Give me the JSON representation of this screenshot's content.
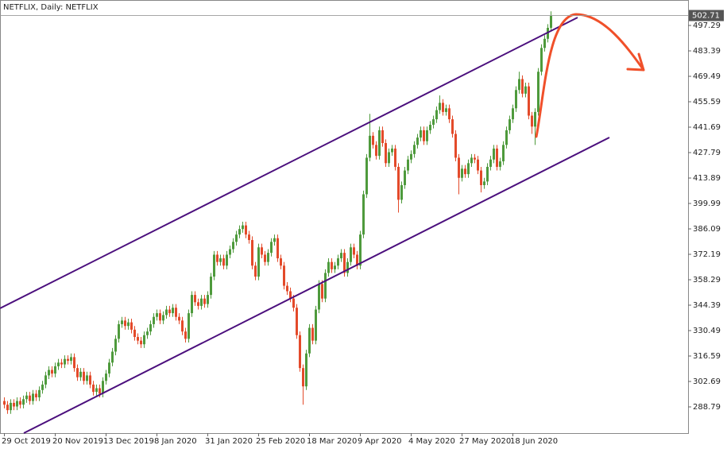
{
  "chart_data": {
    "type": "candlestick",
    "title": "NETFLIX, Daily:  NETFLIX",
    "up_color": "#4e9a3c",
    "down_color": "#e34a2a",
    "last_price": 502.71,
    "ylim": [
      274.46,
      511.2
    ],
    "yticks": [
      288.79,
      302.69,
      316.59,
      330.49,
      344.39,
      358.29,
      372.19,
      386.09,
      399.99,
      413.89,
      427.79,
      441.69,
      455.59,
      469.49,
      483.39,
      497.29
    ],
    "categories": [
      "29 Oct 2019",
      null,
      null,
      null,
      null,
      null,
      null,
      null,
      null,
      null,
      null,
      null,
      null,
      null,
      null,
      null,
      "20 Nov 2019",
      null,
      null,
      null,
      null,
      null,
      null,
      null,
      null,
      null,
      null,
      null,
      null,
      null,
      null,
      null,
      "13 Dec 2019",
      null,
      null,
      null,
      null,
      null,
      null,
      null,
      null,
      null,
      null,
      null,
      null,
      null,
      null,
      null,
      "8 Jan 2020",
      null,
      null,
      null,
      null,
      null,
      null,
      null,
      null,
      null,
      null,
      null,
      null,
      null,
      null,
      null,
      "31 Jan 2020",
      null,
      null,
      null,
      null,
      null,
      null,
      null,
      null,
      null,
      null,
      null,
      null,
      null,
      null,
      null,
      "25 Feb 2020",
      null,
      null,
      null,
      null,
      null,
      null,
      null,
      null,
      null,
      null,
      null,
      null,
      null,
      null,
      null,
      "18 Mar 2020",
      null,
      null,
      null,
      null,
      null,
      null,
      null,
      null,
      null,
      null,
      null,
      null,
      null,
      null,
      null,
      "9 Apr 2020",
      null,
      null,
      null,
      null,
      null,
      null,
      null,
      null,
      null,
      null,
      null,
      null,
      null,
      null,
      null,
      "4 May 2020",
      null,
      null,
      null,
      null,
      null,
      null,
      null,
      null,
      null,
      null,
      null,
      null,
      null,
      null,
      null,
      "27 May 2020",
      null,
      null,
      null,
      null,
      null,
      null,
      null,
      null,
      null,
      null,
      null,
      null,
      null,
      null,
      null,
      "18 Jun 2020",
      null,
      null,
      null,
      null,
      null,
      null,
      null,
      null,
      null,
      null,
      null,
      null
    ],
    "open": [
      292,
      290,
      287,
      291,
      289,
      292,
      290,
      293,
      295,
      292,
      296,
      294,
      298,
      301,
      306,
      309,
      307,
      311,
      313,
      312,
      315,
      314,
      316,
      310,
      305,
      308,
      303,
      306,
      301,
      297,
      299,
      296,
      303,
      307,
      313,
      319,
      326,
      334,
      336,
      333,
      335,
      331,
      327,
      325,
      323,
      328,
      330,
      334,
      338,
      340,
      336,
      339,
      342,
      340,
      343,
      338,
      336,
      330,
      326,
      340,
      350,
      346,
      344,
      348,
      345,
      350,
      360,
      372,
      368,
      370,
      366,
      372,
      375,
      379,
      383,
      386,
      388,
      383,
      380,
      366,
      360,
      376,
      372,
      368,
      373,
      379,
      381,
      370,
      366,
      355,
      352,
      348,
      343,
      328,
      310,
      300,
      318,
      332,
      325,
      342,
      356,
      348,
      362,
      368,
      364,
      366,
      370,
      373,
      362,
      368,
      376,
      372,
      366,
      383,
      405,
      425,
      437,
      432,
      426,
      440,
      433,
      422,
      428,
      430,
      420,
      402,
      410,
      418,
      424,
      427,
      432,
      436,
      440,
      434,
      440,
      443,
      446,
      451,
      455,
      450,
      452,
      446,
      438,
      425,
      414,
      419,
      416,
      422,
      425,
      424,
      418,
      410,
      412,
      420,
      424,
      430,
      420,
      423,
      432,
      440,
      446,
      452,
      462,
      468,
      460,
      464,
      448,
      442,
      450,
      472,
      485,
      490,
      496
    ],
    "high": [
      294,
      292,
      293,
      293,
      294,
      294,
      295,
      297,
      297,
      298,
      298,
      300,
      303,
      308,
      311,
      311,
      313,
      315,
      315,
      317,
      317,
      318,
      318,
      312,
      310,
      310,
      308,
      308,
      303,
      301,
      301,
      305,
      309,
      315,
      321,
      328,
      336,
      338,
      338,
      337,
      337,
      333,
      329,
      327,
      330,
      332,
      336,
      340,
      342,
      342,
      341,
      344,
      344,
      345,
      345,
      340,
      338,
      332,
      342,
      352,
      352,
      348,
      350,
      350,
      352,
      362,
      374,
      374,
      372,
      372,
      374,
      377,
      381,
      385,
      388,
      390,
      390,
      385,
      382,
      368,
      378,
      378,
      374,
      375,
      381,
      383,
      383,
      372,
      368,
      357,
      354,
      350,
      345,
      330,
      312,
      320,
      334,
      334,
      344,
      358,
      358,
      364,
      370,
      370,
      368,
      372,
      375,
      375,
      370,
      378,
      378,
      374,
      385,
      407,
      427,
      449,
      439,
      434,
      442,
      442,
      435,
      430,
      432,
      432,
      422,
      412,
      420,
      426,
      429,
      434,
      438,
      442,
      442,
      442,
      445,
      448,
      453,
      459,
      457,
      454,
      454,
      448,
      440,
      427,
      421,
      421,
      424,
      427,
      427,
      426,
      420,
      414,
      422,
      426,
      432,
      432,
      425,
      434,
      442,
      448,
      454,
      464,
      472,
      470,
      466,
      466,
      450,
      452,
      474,
      487,
      492,
      498,
      505
    ],
    "low": [
      288,
      285,
      285,
      287,
      287,
      288,
      288,
      291,
      290,
      290,
      292,
      292,
      296,
      299,
      304,
      305,
      305,
      309,
      310,
      310,
      312,
      312,
      308,
      303,
      303,
      301,
      301,
      299,
      295,
      295,
      294,
      294,
      301,
      305,
      311,
      317,
      324,
      332,
      331,
      331,
      329,
      325,
      323,
      321,
      321,
      326,
      328,
      332,
      336,
      334,
      334,
      337,
      338,
      338,
      336,
      334,
      328,
      324,
      324,
      338,
      344,
      342,
      342,
      343,
      343,
      348,
      358,
      366,
      366,
      364,
      364,
      370,
      373,
      377,
      381,
      384,
      381,
      378,
      364,
      358,
      358,
      370,
      366,
      366,
      371,
      377,
      368,
      364,
      353,
      350,
      346,
      341,
      326,
      308,
      290,
      298,
      316,
      323,
      323,
      340,
      346,
      346,
      360,
      362,
      362,
      364,
      368,
      360,
      360,
      366,
      370,
      364,
      364,
      381,
      403,
      423,
      430,
      424,
      424,
      431,
      420,
      420,
      426,
      418,
      395,
      400,
      408,
      416,
      422,
      425,
      430,
      434,
      432,
      432,
      438,
      441,
      444,
      449,
      448,
      448,
      444,
      436,
      423,
      405,
      412,
      414,
      414,
      420,
      422,
      416,
      406,
      408,
      410,
      418,
      422,
      418,
      418,
      421,
      430,
      438,
      444,
      450,
      460,
      458,
      458,
      446,
      438,
      432,
      448,
      470,
      483,
      488,
      494
    ],
    "close": [
      290,
      287,
      291,
      289,
      292,
      290,
      293,
      295,
      292,
      296,
      294,
      298,
      301,
      306,
      309,
      307,
      311,
      313,
      312,
      315,
      314,
      316,
      310,
      305,
      308,
      303,
      306,
      301,
      297,
      299,
      296,
      303,
      307,
      313,
      319,
      326,
      334,
      336,
      333,
      335,
      331,
      327,
      325,
      323,
      328,
      330,
      334,
      338,
      340,
      336,
      339,
      342,
      340,
      343,
      338,
      336,
      330,
      326,
      340,
      350,
      346,
      344,
      348,
      345,
      350,
      360,
      372,
      368,
      370,
      366,
      372,
      375,
      379,
      383,
      386,
      388,
      383,
      380,
      366,
      360,
      376,
      372,
      368,
      373,
      379,
      381,
      370,
      366,
      355,
      352,
      348,
      343,
      328,
      310,
      300,
      318,
      332,
      325,
      342,
      356,
      348,
      362,
      368,
      364,
      366,
      370,
      373,
      362,
      368,
      376,
      372,
      366,
      383,
      405,
      425,
      437,
      432,
      426,
      440,
      433,
      422,
      428,
      430,
      420,
      402,
      410,
      418,
      424,
      427,
      432,
      436,
      440,
      434,
      440,
      443,
      446,
      451,
      455,
      450,
      452,
      446,
      438,
      425,
      414,
      419,
      416,
      422,
      425,
      424,
      418,
      410,
      412,
      420,
      424,
      430,
      420,
      423,
      432,
      440,
      446,
      452,
      462,
      468,
      460,
      464,
      448,
      442,
      450,
      472,
      485,
      490,
      496,
      502.71
    ]
  }
}
